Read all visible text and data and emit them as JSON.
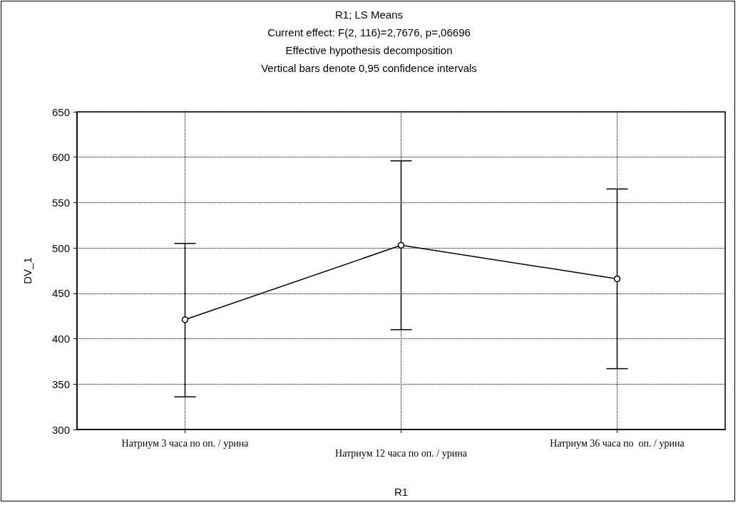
{
  "chart_data": {
    "type": "line",
    "title": "R1; LS Means",
    "subtitle": "Current effect: F(2, 116)=2,7676, p=,06696\nEffective hypothesis decomposition\nVertical bars denote 0,95 confidence intervals",
    "xlabel": "R1",
    "ylabel": "DV_1",
    "categories": [
      "Натриум 3 часа по оп. / урина",
      "Натриум 12 часа по оп. / урина",
      "Натриум 36 часа по  оп. / урина"
    ],
    "series": [
      {
        "color": "#000000",
        "values": [
          421,
          503,
          466
        ],
        "errors": [
          [
            336,
            505
          ],
          [
            410,
            596
          ],
          [
            367,
            565
          ]
        ]
      }
    ],
    "ylim": [
      300,
      650
    ],
    "yticks": [
      300,
      350,
      400,
      450,
      500,
      550,
      600,
      650
    ],
    "grid": true,
    "marker": "circle",
    "line_style": "solid"
  }
}
